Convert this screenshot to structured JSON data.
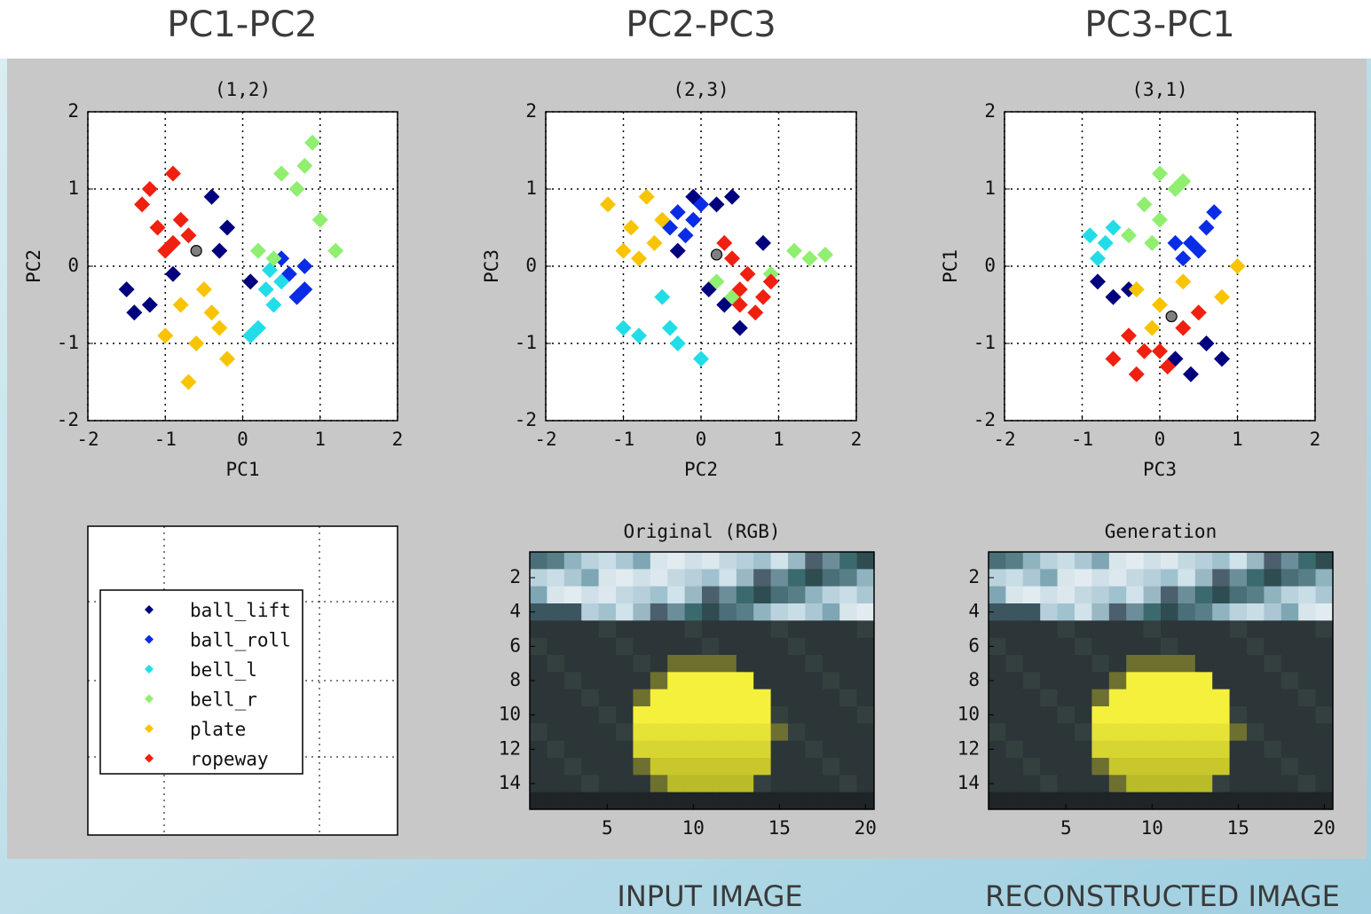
{
  "header": {
    "headings": [
      "PC1-PC2",
      "PC2-PC3",
      "PC3-PC1"
    ]
  },
  "chart_data": [
    {
      "type": "scatter",
      "title": "(1,2)",
      "x_label": "PC1",
      "y_label": "PC2",
      "xlim": [
        -2,
        2
      ],
      "ylim": [
        -2,
        2
      ],
      "xticks": [
        -2,
        -1,
        0,
        1,
        2
      ],
      "yticks": [
        -2,
        -1,
        0,
        1,
        2
      ],
      "grid": true,
      "legend": true,
      "series": [
        {
          "name": "ball_lift",
          "color": "#00007f",
          "x": [
            -1.5,
            -1.2,
            -0.4,
            -0.2,
            0.1,
            -0.9,
            -0.3,
            -1.4
          ],
          "y": [
            -0.3,
            -0.5,
            0.9,
            0.5,
            -0.2,
            -0.1,
            0.2,
            -0.6
          ]
        },
        {
          "name": "ball_roll",
          "color": "#0a2ce6",
          "x": [
            0.6,
            0.8,
            0.7,
            0.5,
            0.8
          ],
          "y": [
            -0.1,
            0,
            -0.4,
            0.1,
            -0.3
          ]
        },
        {
          "name": "bell_l",
          "color": "#22dde8",
          "x": [
            0.3,
            0.4,
            0.2,
            0.5,
            0.1,
            0.35
          ],
          "y": [
            -0.3,
            -0.5,
            -0.8,
            -0.2,
            -0.9,
            -0.05
          ]
        },
        {
          "name": "bell_r",
          "color": "#90ee70",
          "x": [
            0.9,
            0.7,
            1.0,
            1.2,
            0.4,
            0.2,
            0.5,
            0.8
          ],
          "y": [
            1.6,
            1.0,
            0.6,
            0.2,
            0.1,
            0.2,
            1.2,
            1.3
          ]
        },
        {
          "name": "plate",
          "color": "#f8c400",
          "x": [
            -0.8,
            -0.6,
            -0.7,
            -0.3,
            -0.5,
            -1.0,
            -0.2,
            -0.4
          ],
          "y": [
            -0.5,
            -1.0,
            -1.5,
            -0.8,
            -0.3,
            -0.9,
            -1.2,
            -0.6
          ]
        },
        {
          "name": "ropeway",
          "color": "#f02010",
          "x": [
            -1.3,
            -1.1,
            -0.9,
            -1.2,
            -0.8,
            -0.9,
            -1.0,
            -0.7
          ],
          "y": [
            0.8,
            0.5,
            0.3,
            1.0,
            0.6,
            1.2,
            0.2,
            0.4
          ]
        }
      ],
      "current": {
        "x": -0.6,
        "y": 0.2,
        "color": "#808080"
      }
    },
    {
      "type": "scatter",
      "title": "(2,3)",
      "x_label": "PC2",
      "y_label": "PC3",
      "xlim": [
        -2,
        2
      ],
      "ylim": [
        -2,
        2
      ],
      "xticks": [
        -2,
        -1,
        0,
        1,
        2
      ],
      "yticks": [
        -2,
        -1,
        0,
        1,
        2
      ],
      "grid": true,
      "series": [
        {
          "name": "ball_lift",
          "color": "#00007f",
          "x": [
            -0.1,
            0.2,
            0.3,
            0.5,
            0.8,
            0.1,
            0.4,
            -0.3
          ],
          "y": [
            0.9,
            0.8,
            -0.5,
            -0.8,
            0.3,
            -0.3,
            0.9,
            0.2
          ]
        },
        {
          "name": "ball_roll",
          "color": "#0a2ce6",
          "x": [
            -0.3,
            -0.1,
            -0.2,
            0,
            -0.4
          ],
          "y": [
            0.7,
            0.6,
            0.4,
            0.8,
            0.5
          ]
        },
        {
          "name": "bell_l",
          "color": "#22dde8",
          "x": [
            -1.0,
            -0.8,
            -0.4,
            -0.3,
            -0.5,
            0.0
          ],
          "y": [
            -0.8,
            -0.9,
            -0.8,
            -1.0,
            -0.4,
            -1.2
          ]
        },
        {
          "name": "bell_r",
          "color": "#90ee70",
          "x": [
            1.2,
            1.4,
            1.6,
            0.9,
            0.2,
            0.4
          ],
          "y": [
            0.2,
            0.1,
            0.15,
            -0.1,
            -0.2,
            -0.4
          ]
        },
        {
          "name": "plate",
          "color": "#f8c400",
          "x": [
            -1.2,
            -0.9,
            -0.6,
            -0.7,
            -1.0,
            -0.5,
            -0.8
          ],
          "y": [
            0.8,
            0.5,
            0.3,
            0.9,
            0.2,
            0.6,
            0.1
          ]
        },
        {
          "name": "ropeway",
          "color": "#f02010",
          "x": [
            0.5,
            0.6,
            0.7,
            0.3,
            0.4,
            0.8,
            0.9,
            0.5
          ],
          "y": [
            -0.3,
            -0.1,
            -0.6,
            0.3,
            0.1,
            -0.4,
            -0.2,
            -0.5
          ]
        }
      ],
      "current": {
        "x": 0.2,
        "y": 0.15,
        "color": "#808080"
      }
    },
    {
      "type": "scatter",
      "title": "(3,1)",
      "x_label": "PC3",
      "y_label": "PC1",
      "xlim": [
        -2,
        2
      ],
      "ylim": [
        -2,
        2
      ],
      "xticks": [
        -2,
        -1,
        0,
        1,
        2
      ],
      "yticks": [
        -2,
        -1,
        0,
        1,
        2
      ],
      "grid": true,
      "series": [
        {
          "name": "ball_lift",
          "color": "#00007f",
          "x": [
            -0.8,
            -0.6,
            0.2,
            0.4,
            0.6,
            0.8,
            -0.4
          ],
          "y": [
            -0.2,
            -0.4,
            -1.2,
            -1.4,
            -1.0,
            -1.2,
            -0.3
          ]
        },
        {
          "name": "ball_roll",
          "color": "#0a2ce6",
          "x": [
            0.4,
            0.6,
            0.7,
            0.3,
            0.5,
            0.2
          ],
          "y": [
            0.3,
            0.5,
            0.7,
            0.1,
            0.2,
            0.3
          ]
        },
        {
          "name": "bell_l",
          "color": "#22dde8",
          "x": [
            -0.9,
            -0.7,
            -0.8,
            -0.6
          ],
          "y": [
            0.4,
            0.3,
            0.1,
            0.5
          ]
        },
        {
          "name": "bell_r",
          "color": "#90ee70",
          "x": [
            0,
            0.2,
            -0.2,
            -0.4,
            0,
            0.3,
            -0.1
          ],
          "y": [
            1.2,
            1.0,
            0.8,
            0.4,
            0.6,
            1.1,
            0.3
          ]
        },
        {
          "name": "plate",
          "color": "#f8c400",
          "x": [
            -0.3,
            0,
            0.5,
            1.0,
            0.8,
            -0.1,
            0.3
          ],
          "y": [
            -0.3,
            -0.5,
            -0.6,
            0,
            -0.4,
            -0.8,
            -0.2
          ]
        },
        {
          "name": "ropeway",
          "color": "#f02010",
          "x": [
            -0.6,
            -0.3,
            0,
            0.3,
            -0.4,
            0.5,
            0.1,
            -0.2
          ],
          "y": [
            -1.2,
            -1.4,
            -1.1,
            -0.8,
            -0.9,
            -0.6,
            -1.3,
            -1.1
          ]
        }
      ],
      "current": {
        "x": 0.15,
        "y": -0.65,
        "color": "#808080"
      }
    },
    {
      "type": "image",
      "title": "Original (RGB)",
      "xlim": [
        0.5,
        20.5
      ],
      "ylim": [
        15.5,
        0.5
      ],
      "xticks": [
        5,
        10,
        15,
        20
      ],
      "yticks": [
        2,
        4,
        6,
        8,
        10,
        12,
        14
      ]
    },
    {
      "type": "image",
      "title": "Generation",
      "xlim": [
        0.5,
        20.5
      ],
      "ylim": [
        15.5,
        0.5
      ],
      "xticks": [
        5,
        10,
        15,
        20
      ],
      "yticks": [
        2,
        4,
        6,
        8,
        10,
        12,
        14
      ]
    }
  ],
  "captions": [
    "INPUT IMAGE",
    "RECONSTRUCTED IMAGE"
  ]
}
